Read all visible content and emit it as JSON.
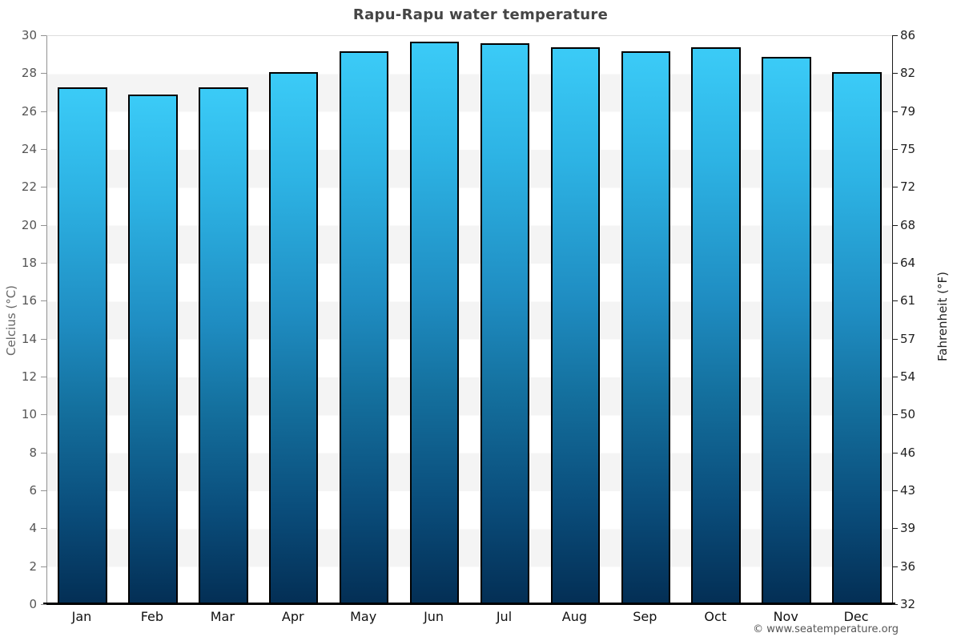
{
  "title": "Rapu-Rapu water temperature",
  "footer": "© www.seatemperature.org",
  "chart_data": {
    "type": "bar",
    "title": "Rapu-Rapu water temperature",
    "categories": [
      "Jan",
      "Feb",
      "Mar",
      "Apr",
      "May",
      "Jun",
      "Jul",
      "Aug",
      "Sep",
      "Oct",
      "Nov",
      "Dec"
    ],
    "values": [
      27.3,
      26.9,
      27.3,
      28.1,
      29.2,
      29.7,
      29.6,
      29.4,
      29.2,
      29.4,
      28.9,
      28.1
    ],
    "unit": "°C",
    "ylabel": "Celcius (°C)",
    "ylabel_right": "Fahrenheit (°F)",
    "xlabel": "",
    "ylim": [
      0,
      30
    ],
    "yticks_celsius": [
      30,
      28,
      26,
      24,
      22,
      20,
      18,
      16,
      14,
      12,
      10,
      8,
      6,
      4,
      2,
      0
    ],
    "yticks_fahrenheit": [
      86,
      82,
      79,
      75,
      72,
      68,
      64,
      61,
      57,
      54,
      50,
      46,
      43,
      39,
      36,
      32
    ],
    "grid": "alternating horizontal bands every 2°C",
    "legend": "none",
    "colors": {
      "bar_gradient_top": "#3bcbf7",
      "bar_gradient_mid": "#1f8dc2",
      "bar_gradient_bottom": "#032e54",
      "bar_border": "#000000",
      "band_light": "#ffffff",
      "band_gray": "#f4f4f4",
      "title_text": "#454545",
      "left_axis_text": "#555555",
      "right_axis_text": "#222222"
    }
  }
}
